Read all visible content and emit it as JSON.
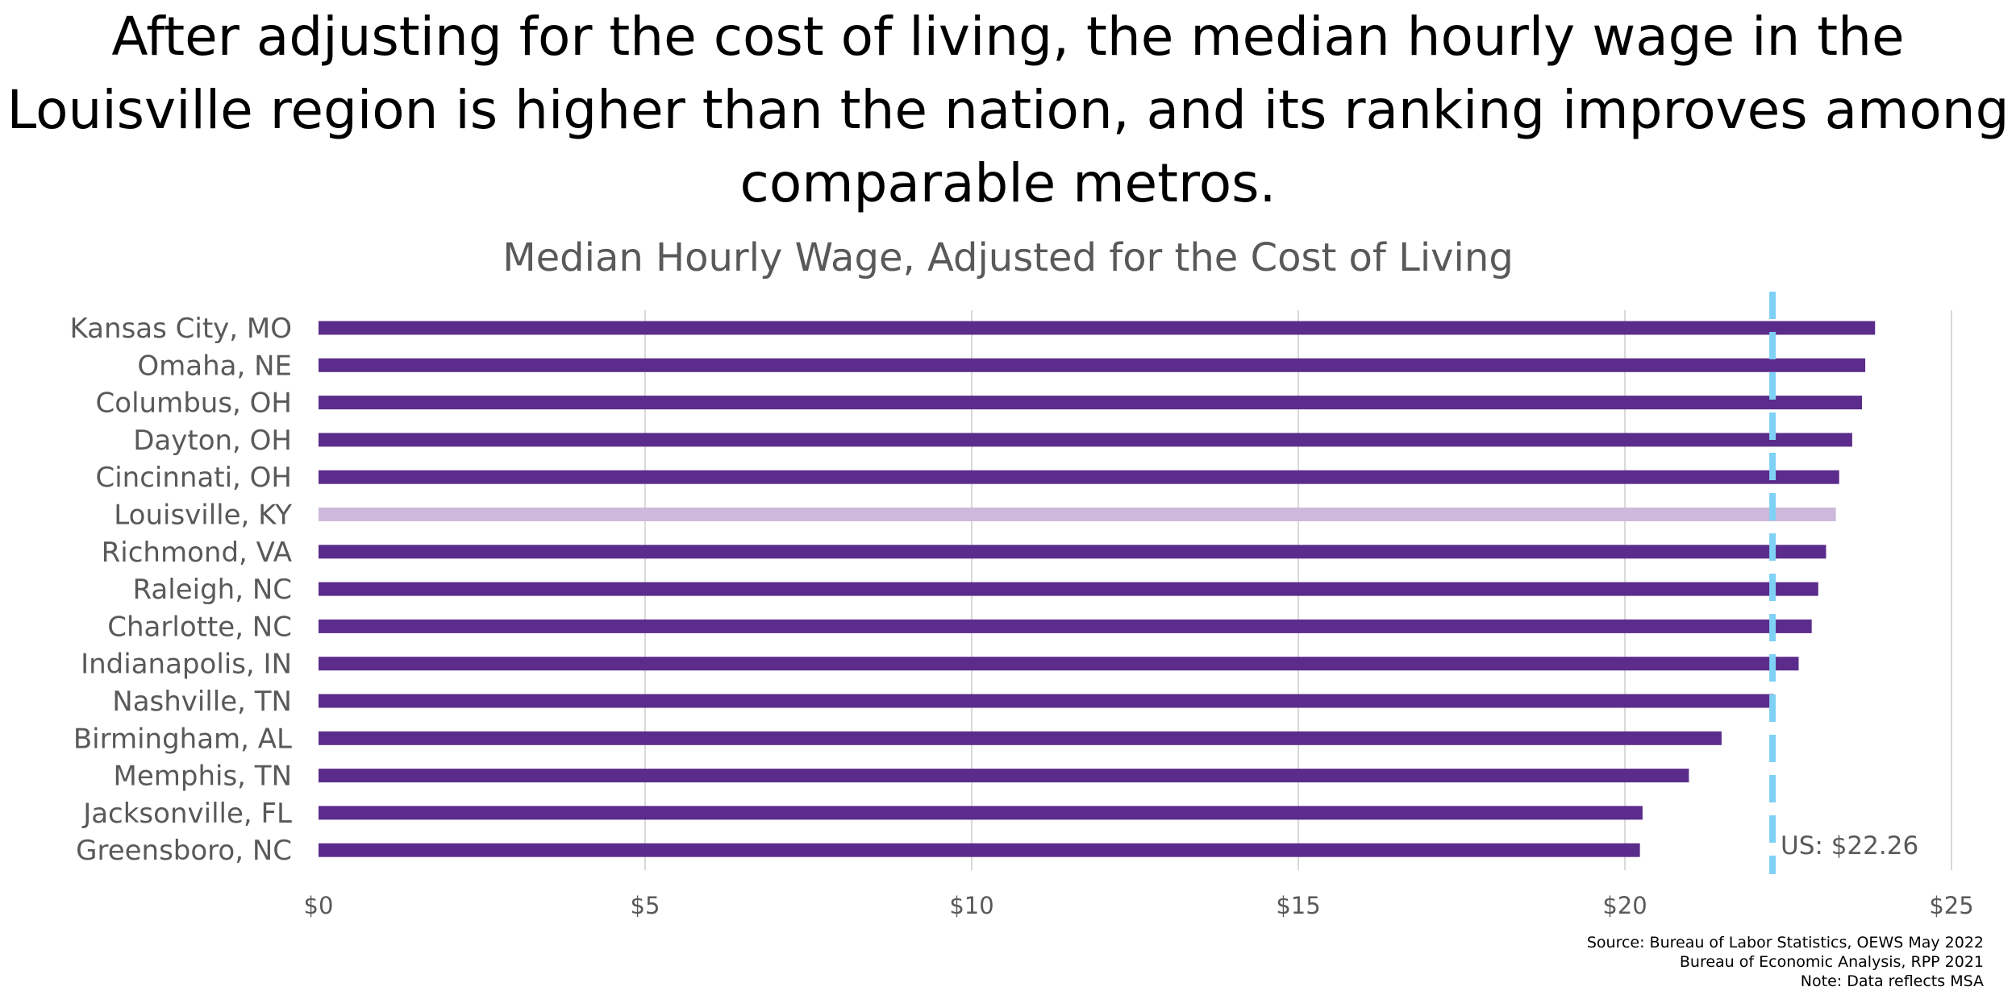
{
  "headline": "After adjusting for the cost of living, the median hourly wage in the Louisville region is higher than the nation, and its ranking improves among comparable metros.",
  "chart_data": {
    "type": "bar",
    "orientation": "horizontal",
    "title": "Median Hourly Wage, Adjusted for the Cost of Living",
    "categories": [
      "Kansas City, MO",
      "Omaha, NE",
      "Columbus, OH",
      "Dayton, OH",
      "Cincinnati, OH",
      "Louisville, KY",
      "Richmond, VA",
      "Raleigh, NC",
      "Charlotte, NC",
      "Indianapolis, IN",
      "Nashville, TN",
      "Birmingham, AL",
      "Memphis, TN",
      "Jacksonville, FL",
      "Greensboro, NC"
    ],
    "values": [
      23.83,
      23.68,
      23.63,
      23.48,
      23.28,
      23.23,
      23.08,
      22.96,
      22.86,
      22.66,
      22.28,
      21.48,
      20.98,
      20.27,
      20.23
    ],
    "highlight": "Louisville, KY",
    "colors": {
      "bar": "#5B2C8B",
      "highlight": "#CDB9D9",
      "reference": "#7FD1F5",
      "grid": "#D9D9D9",
      "label": "#595959"
    },
    "xlim": [
      0,
      25
    ],
    "xticks": [
      0,
      5,
      10,
      15,
      20,
      25
    ],
    "xtick_labels": [
      "$0",
      "$5",
      "$10",
      "$15",
      "$20",
      "$25"
    ],
    "grid": true,
    "reference_line": {
      "value": 22.26,
      "label": "US: $22.26",
      "style": "dashed"
    }
  },
  "source_lines": [
    "Source: Bureau of Labor Statistics, OEWS May 2022",
    "Bureau of Economic Analysis, RPP 2021",
    "Note: Data reflects MSA"
  ]
}
